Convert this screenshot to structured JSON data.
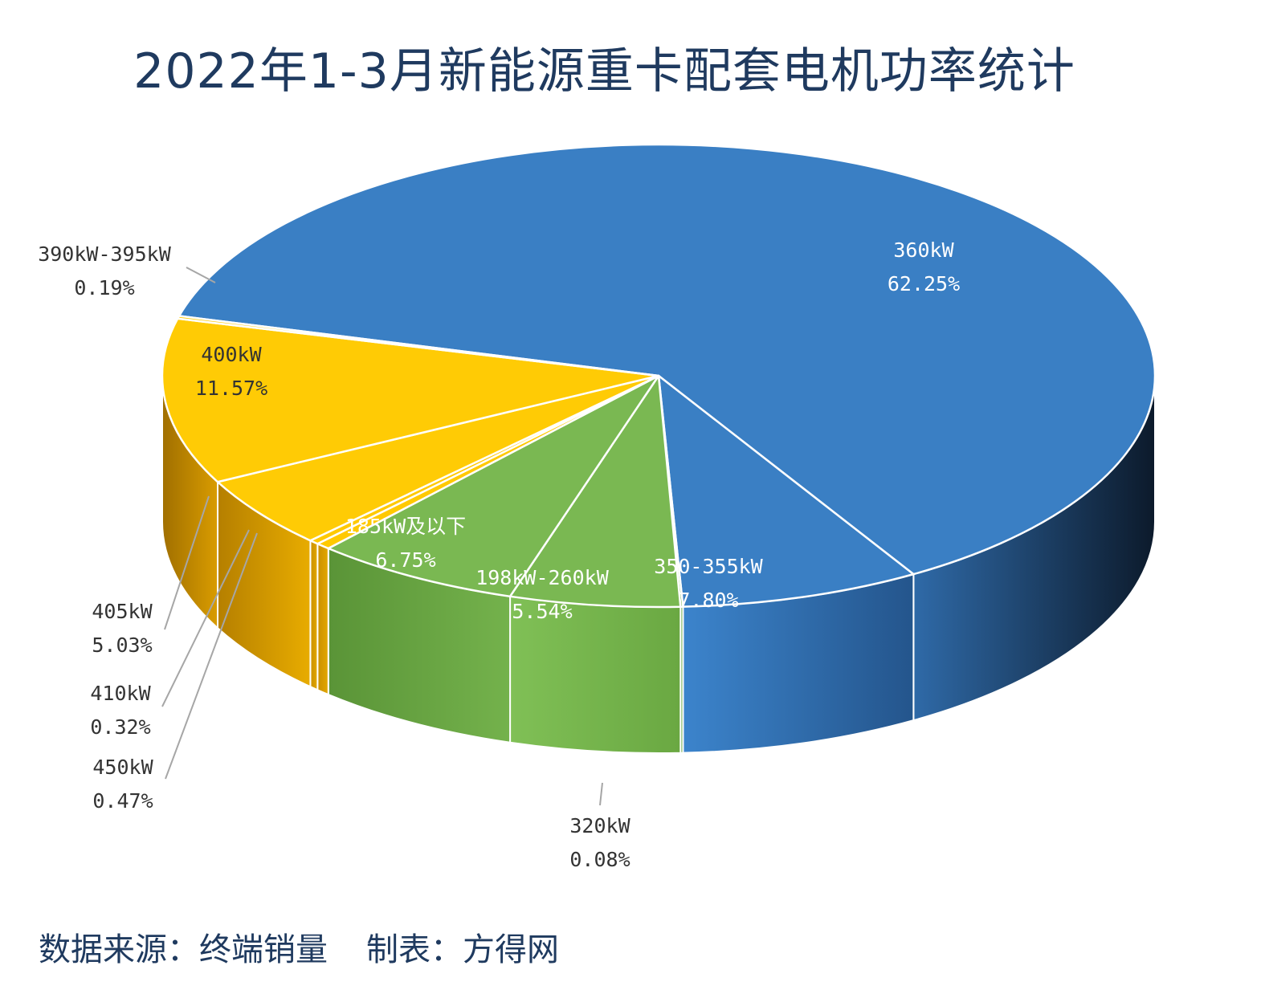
{
  "title": "2022年1-3月新能源重卡配套电机功率统计",
  "footer": {
    "source": "数据来源：终端销量",
    "maker": "制表：方得网"
  },
  "chart_data": {
    "type": "pie",
    "title": "2022年1-3月新能源重卡配套电机功率统计",
    "unit": "%",
    "slices": [
      {
        "label": "360kW",
        "value": 62.25,
        "value_text": "62.25%",
        "color": "#3a7fc4",
        "dark": "#0c1a2b",
        "side_light": "#2f6aa8"
      },
      {
        "label": "350-355kW",
        "value": 7.8,
        "value_text": "7.80%",
        "color": "#3a7fc4",
        "dark": "#24558c",
        "side_light": "#3c84cc"
      },
      {
        "label": "320kW",
        "value": 0.08,
        "value_text": "0.08%",
        "color": "#74b24c",
        "dark": "#5a9338",
        "side_light": "#7dbc52"
      },
      {
        "label": "198kW-260kW",
        "value": 5.54,
        "value_text": "5.54%",
        "color": "#7ab852",
        "dark": "#6aa842",
        "side_light": "#80c056"
      },
      {
        "label": "185kW及以下",
        "value": 6.75,
        "value_text": "6.75%",
        "color": "#7ab852",
        "dark": "#5a9437",
        "side_light": "#74b24c"
      },
      {
        "label": "450kW",
        "value": 0.47,
        "value_text": "0.47%",
        "color": "#ffc900",
        "dark": "#c98f00",
        "side_light": "#e3a800"
      },
      {
        "label": "410kW",
        "value": 0.32,
        "value_text": "0.32%",
        "color": "#ffc900",
        "dark": "#c98f00",
        "side_light": "#e3a800"
      },
      {
        "label": "405kW",
        "value": 5.03,
        "value_text": "5.03%",
        "color": "#ffcb05",
        "dark": "#b57f00",
        "side_light": "#e8ac00"
      },
      {
        "label": "400kW",
        "value": 11.57,
        "value_text": "11.57%",
        "color": "#ffcb05",
        "dark": "#a06f00",
        "side_light": "#d99c00"
      },
      {
        "label": "390kW-395kW",
        "value": 0.19,
        "value_text": "0.19%",
        "color": "#ffcb05",
        "dark": "#a06f00",
        "side_light": "#d99c00"
      }
    ]
  }
}
